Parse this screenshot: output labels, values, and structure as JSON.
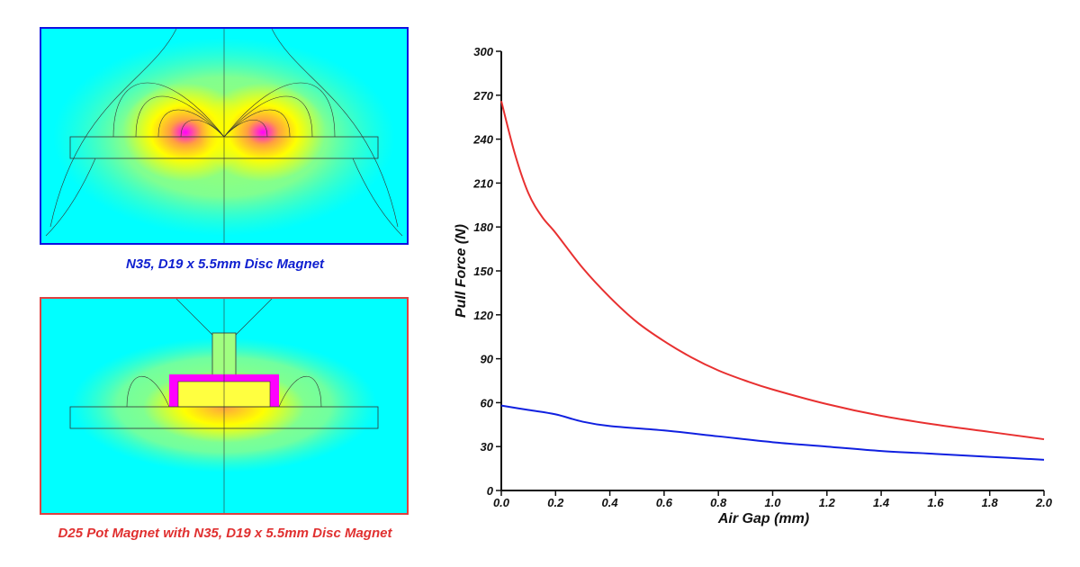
{
  "panels": {
    "top_caption": "N35, D19 x 5.5mm Disc Magnet",
    "bottom_caption": "D25 Pot Magnet with N35, D19 x 5.5mm Disc Magnet",
    "top_border_color": "#1010e0",
    "bottom_border_color": "#e04040",
    "background_color": "#00ffff"
  },
  "chart_data": {
    "type": "line",
    "title": "",
    "xlabel": "Air Gap (mm)",
    "ylabel": "Pull Force (N)",
    "xlim": [
      0.0,
      2.0
    ],
    "ylim": [
      0,
      300
    ],
    "xticks": [
      "0.0",
      "0.2",
      "0.4",
      "0.6",
      "0.8",
      "1.0",
      "1.2",
      "1.4",
      "1.6",
      "1.8",
      "2.0"
    ],
    "yticks": [
      "0",
      "30",
      "60",
      "90",
      "120",
      "150",
      "180",
      "210",
      "240",
      "270",
      "300"
    ],
    "grid": false,
    "legend": "none",
    "series": [
      {
        "color": "#e83030",
        "x": [
          0.0,
          0.05,
          0.1,
          0.15,
          0.2,
          0.3,
          0.4,
          0.5,
          0.6,
          0.7,
          0.8,
          0.9,
          1.0,
          1.2,
          1.4,
          1.6,
          1.8,
          2.0
        ],
        "y": [
          266,
          230,
          203,
          187,
          176,
          152,
          132,
          115,
          102,
          91,
          82,
          75,
          69,
          59,
          51,
          45,
          40,
          35
        ]
      },
      {
        "color": "#1020e0",
        "x": [
          0.0,
          0.1,
          0.2,
          0.3,
          0.4,
          0.6,
          0.8,
          1.0,
          1.2,
          1.4,
          1.6,
          1.8,
          2.0
        ],
        "y": [
          58,
          55,
          52,
          47,
          44,
          41,
          37,
          33,
          30,
          27,
          25,
          23,
          21
        ]
      }
    ]
  }
}
